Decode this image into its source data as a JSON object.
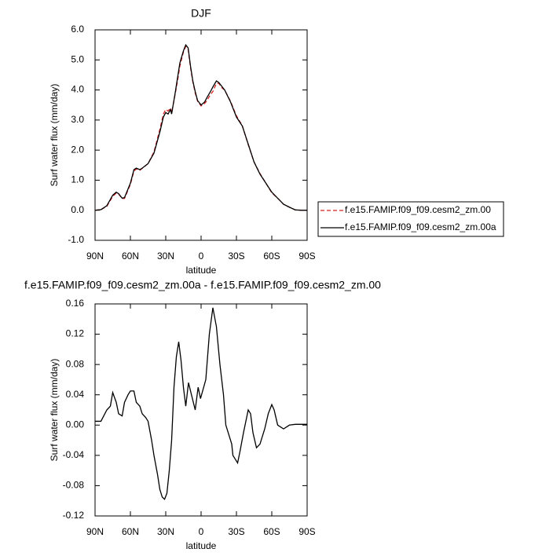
{
  "chart_data": [
    {
      "type": "line",
      "title": "DJF",
      "ylabel": "Surf water flux (mm/day)",
      "xlabel": "latitude",
      "x": [
        90,
        85,
        80,
        75,
        72,
        70,
        67,
        65,
        60,
        57,
        55,
        52,
        50,
        45,
        40,
        35,
        32,
        30,
        28,
        26,
        25,
        22,
        20,
        18,
        15,
        13,
        11,
        9,
        7,
        5,
        3,
        0,
        -3,
        -5,
        -8,
        -10,
        -13,
        -15,
        -18,
        -20,
        -25,
        -30,
        -35,
        -40,
        -45,
        -50,
        -55,
        -60,
        -65,
        -70,
        -75,
        -80,
        -85,
        -90
      ],
      "xlim": [
        90,
        -90
      ],
      "xticks": [
        {
          "value": 90,
          "label": "90N"
        },
        {
          "value": 60,
          "label": "60N"
        },
        {
          "value": 30,
          "label": "30N"
        },
        0,
        {
          "value": -30,
          "label": "30S"
        },
        {
          "value": -60,
          "label": "60S"
        },
        {
          "value": -90,
          "label": "90S"
        }
      ],
      "ylim": [
        -1,
        6
      ],
      "yticks": [
        {
          "value": -1,
          "label": "-1.0"
        },
        {
          "value": 0,
          "label": "0.0"
        },
        {
          "value": 1,
          "label": "1.0"
        },
        {
          "value": 2,
          "label": "2.0"
        },
        {
          "value": 3,
          "label": "3.0"
        },
        {
          "value": 4,
          "label": "4.0"
        },
        {
          "value": 5,
          "label": "5.0"
        },
        {
          "value": 6,
          "label": "6.0"
        }
      ],
      "legend": "right",
      "series": [
        {
          "name": "f.e15.FAMIP.f09_f09.cesm2_zm.00",
          "color": "#d62020",
          "dash": "dashed",
          "values": [
            0,
            0.02,
            0.13,
            0.46,
            0.57,
            0.54,
            0.39,
            0.39,
            0.86,
            1.3,
            1.37,
            1.33,
            1.39,
            1.55,
            1.94,
            2.69,
            3.2,
            3.35,
            3.3,
            3.4,
            3.24,
            3.86,
            4.3,
            4.8,
            5.26,
            5.45,
            5.36,
            4.75,
            4.27,
            3.9,
            3.63,
            3.47,
            3.55,
            3.65,
            3.85,
            3.95,
            4.22,
            4.22,
            4.06,
            4.0,
            3.62,
            3.14,
            2.81,
            2.18,
            1.6,
            1.22,
            0.9,
            0.58,
            0.4,
            0.2,
            0.1,
            0.01,
            0,
            0
          ]
        },
        {
          "name": "f.e15.FAMIP.f09_f09.cesm2_zm.00a",
          "color": "#000000",
          "dash": "solid",
          "values": [
            0,
            0.02,
            0.15,
            0.5,
            0.6,
            0.55,
            0.4,
            0.42,
            0.9,
            1.35,
            1.4,
            1.35,
            1.4,
            1.55,
            1.9,
            2.6,
            3.1,
            3.25,
            3.2,
            3.35,
            3.2,
            3.9,
            4.4,
            4.9,
            5.3,
            5.5,
            5.4,
            4.8,
            4.3,
            3.95,
            3.65,
            3.5,
            3.6,
            3.75,
            3.95,
            4.1,
            4.3,
            4.25,
            4.1,
            4.0,
            3.6,
            3.1,
            2.8,
            2.2,
            1.6,
            1.2,
            0.9,
            0.6,
            0.4,
            0.2,
            0.1,
            0.01,
            0,
            0
          ]
        }
      ]
    },
    {
      "type": "line",
      "title": "f.e15.FAMIP.f09_f09.cesm2_zm.00a - f.e15.FAMIP.f09_f09.cesm2_zm.00",
      "ylabel": "Surf water flux (mm/day)",
      "xlabel": "latitude",
      "x": [
        90,
        85,
        80,
        77,
        75,
        72,
        70,
        67,
        65,
        62,
        60,
        57,
        55,
        52,
        50,
        47,
        45,
        42,
        40,
        37,
        35,
        33,
        31,
        29,
        27,
        25,
        23,
        21,
        19,
        17,
        15,
        13,
        10.7,
        5,
        2.5,
        0.5,
        -4,
        -7,
        -10,
        -13,
        -16,
        -19,
        -21,
        -23,
        -26,
        -27,
        -29,
        -31,
        -33,
        -36,
        -40,
        -42,
        -44,
        -47,
        -50,
        -54,
        -57,
        -60,
        -62,
        -65,
        -70,
        -75,
        -80,
        -90
      ],
      "xlim": [
        90,
        -90
      ],
      "xticks": [
        {
          "value": 90,
          "label": "90N"
        },
        {
          "value": 60,
          "label": "60N"
        },
        {
          "value": 30,
          "label": "30N"
        },
        0,
        {
          "value": -30,
          "label": "30S"
        },
        {
          "value": -60,
          "label": "60S"
        },
        {
          "value": -90,
          "label": "90S"
        }
      ],
      "ylim": [
        -0.12,
        0.16
      ],
      "yticks": [
        -0.12,
        -0.08,
        -0.04,
        {
          "value": 0,
          "label": "0.00"
        },
        0.04,
        0.08,
        0.12,
        0.16
      ],
      "series": [
        {
          "color": "#000000",
          "dash": "solid",
          "values": [
            0.005,
            0.005,
            0.02,
            0.025,
            0.043,
            0.03,
            0.015,
            0.012,
            0.03,
            0.04,
            0.045,
            0.045,
            0.03,
            0.025,
            0.015,
            0.01,
            0.005,
            -0.02,
            -0.04,
            -0.065,
            -0.085,
            -0.095,
            -0.098,
            -0.09,
            -0.06,
            -0.02,
            0.05,
            0.09,
            0.11,
            0.085,
            0.05,
            0.025,
            0.056,
            0.02,
            0.05,
            0.035,
            0.06,
            0.12,
            0.155,
            0.13,
            0.08,
            0.04,
            0.0,
            -0.01,
            -0.025,
            -0.04,
            -0.045,
            -0.05,
            -0.035,
            -0.01,
            0.02,
            0.015,
            -0.01,
            -0.03,
            -0.025,
            -0.005,
            0.015,
            0.027,
            0.02,
            0.0,
            -0.005,
            0.0,
            0.001,
            0.001
          ]
        }
      ]
    }
  ]
}
